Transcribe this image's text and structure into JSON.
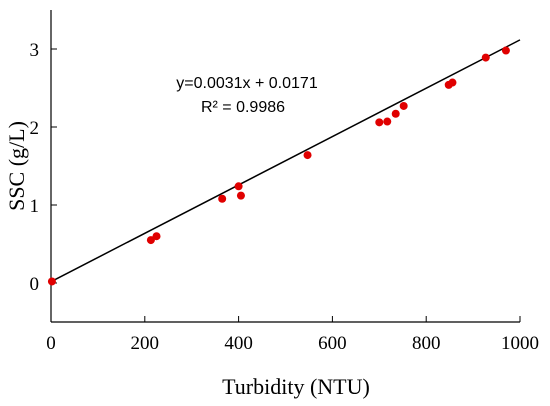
{
  "chart_data": {
    "type": "scatter",
    "xlabel": "Turbidity (NTU)",
    "ylabel": "SSC (g/L)",
    "xlim": [
      0,
      1000
    ],
    "ylim": [
      -0.5,
      3.5
    ],
    "xticks": [
      "0",
      "200",
      "400",
      "600",
      "800",
      "1000"
    ],
    "yticks": [
      "0",
      "1",
      "2",
      "3"
    ],
    "grid": false,
    "legend": "none",
    "annotations": [
      "y=0.0031x + 0.0171",
      "R² = 0.9986"
    ],
    "fit_line": {
      "slope": 0.0031,
      "intercept": 0.0171,
      "color": "#000000"
    },
    "series": [
      {
        "color": "#e00000",
        "points": [
          [
            2,
            0.02
          ],
          [
            213,
            0.55
          ],
          [
            225,
            0.6
          ],
          [
            365,
            1.08
          ],
          [
            400,
            1.24
          ],
          [
            405,
            1.12
          ],
          [
            547,
            1.64
          ],
          [
            700,
            2.06
          ],
          [
            717,
            2.07
          ],
          [
            735,
            2.17
          ],
          [
            752,
            2.27
          ],
          [
            848,
            2.54
          ],
          [
            856,
            2.57
          ],
          [
            927,
            2.89
          ],
          [
            970,
            2.98
          ]
        ]
      }
    ]
  }
}
